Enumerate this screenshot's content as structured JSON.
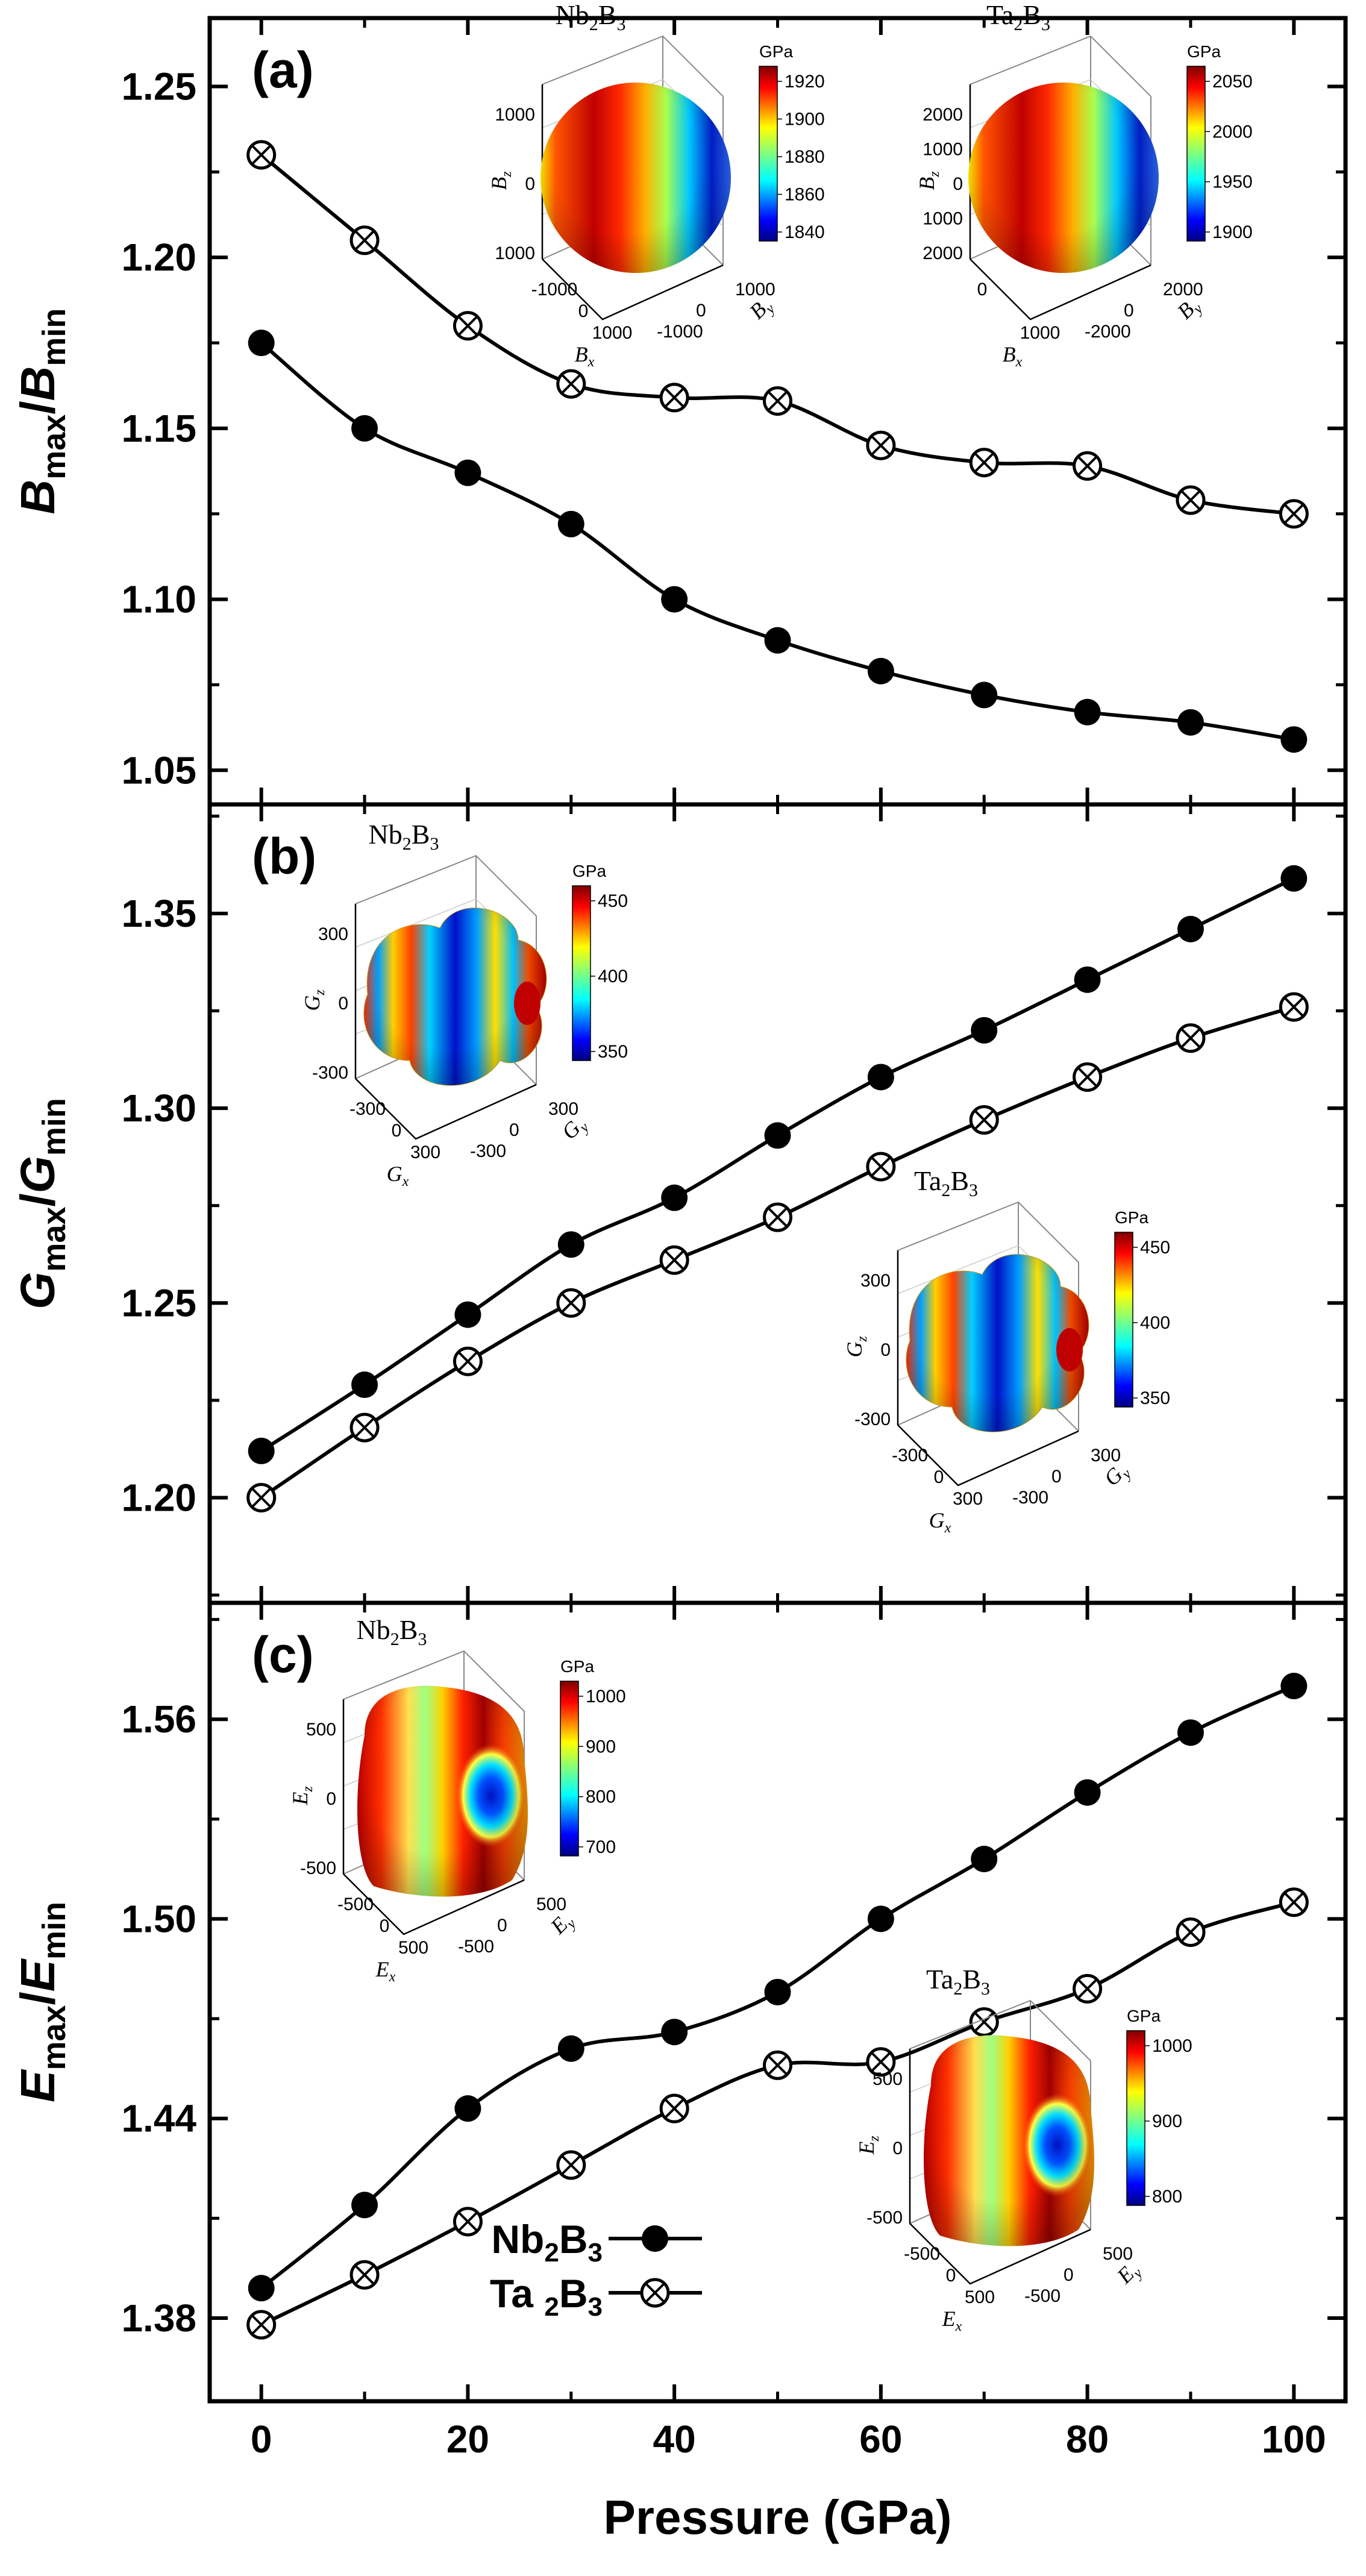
{
  "chart_data": [
    {
      "type": "line",
      "panel_label": "(a)",
      "ylabel_main": "B",
      "ylabel_sub_max": "max",
      "ylabel_slash": "/",
      "ylabel_sub_min": "min",
      "ylim": [
        1.04,
        1.27
      ],
      "yticks": [
        "1.05",
        "1.10",
        "1.15",
        "1.20",
        "1.25"
      ],
      "x": [
        0,
        10,
        20,
        30,
        40,
        50,
        60,
        70,
        80,
        90,
        100
      ],
      "series": [
        {
          "name": "Nb2B3",
          "values": [
            1.175,
            1.15,
            1.137,
            1.122,
            1.1,
            1.088,
            1.079,
            1.072,
            1.067,
            1.064,
            1.059
          ]
        },
        {
          "name": "Ta2B3",
          "values": [
            1.23,
            1.205,
            1.18,
            1.163,
            1.159,
            1.158,
            1.145,
            1.14,
            1.139,
            1.129,
            1.125
          ]
        }
      ],
      "insets": [
        {
          "title": "Nb",
          "title_sub": "2",
          "title_b": "B",
          "title_sub2": "3",
          "unit": "GPa",
          "colorbar_ticks": [
            "1920",
            "1900",
            "1880",
            "1860",
            "1840"
          ],
          "z_ticks": [
            "1000",
            "0",
            "1000"
          ],
          "x_ticks": [
            "-1000",
            "0",
            "1000"
          ],
          "y_ticks": [
            "1000",
            "0",
            "-1000"
          ],
          "ax_x": "B",
          "ax_x_sub": "x",
          "ax_y": "B",
          "ax_y_sub": "y",
          "ax_z": "B",
          "ax_z_sub": "z"
        },
        {
          "title": "Ta",
          "title_sub": "2",
          "title_b": "B",
          "title_sub2": "3",
          "unit": "GPa",
          "colorbar_ticks": [
            "2050",
            "2000",
            "1950",
            "1900"
          ],
          "z_ticks": [
            "2000",
            "1000",
            "0",
            "1000",
            "2000"
          ],
          "x_ticks": [
            "0",
            "1000"
          ],
          "y_ticks": [
            "2000",
            "0",
            "-2000"
          ],
          "ax_x": "B",
          "ax_x_sub": "x",
          "ax_y": "B",
          "ax_y_sub": "y",
          "ax_z": "B",
          "ax_z_sub": "z"
        }
      ]
    },
    {
      "type": "line",
      "panel_label": "(b)",
      "ylabel_main": "G",
      "ylabel_sub_max": "max",
      "ylabel_slash": "/",
      "ylabel_sub_min": "min",
      "ylim": [
        1.173,
        1.378
      ],
      "yticks": [
        "1.20",
        "1.25",
        "1.30",
        "1.35"
      ],
      "x": [
        0,
        10,
        20,
        30,
        40,
        50,
        60,
        70,
        80,
        90,
        100
      ],
      "series": [
        {
          "name": "Nb2B3",
          "values": [
            1.212,
            1.229,
            1.247,
            1.265,
            1.277,
            1.293,
            1.308,
            1.32,
            1.333,
            1.346,
            1.359
          ]
        },
        {
          "name": "Ta2B3",
          "values": [
            1.2,
            1.218,
            1.235,
            1.25,
            1.261,
            1.272,
            1.285,
            1.297,
            1.308,
            1.318,
            1.326
          ]
        }
      ],
      "insets": [
        {
          "title": "Nb",
          "title_sub": "2",
          "title_b": "B",
          "title_sub2": "3",
          "unit": "GPa",
          "colorbar_ticks": [
            "450",
            "400",
            "350"
          ],
          "z_ticks": [
            "300",
            "0",
            "-300"
          ],
          "x_ticks": [
            "-300",
            "0",
            "300"
          ],
          "y_ticks": [
            "300",
            "0",
            "-300"
          ],
          "ax_x": "G",
          "ax_x_sub": "x",
          "ax_y": "G",
          "ax_y_sub": "y",
          "ax_z": "G",
          "ax_z_sub": "z"
        },
        {
          "title": "Ta",
          "title_sub": "2",
          "title_b": "B",
          "title_sub2": "3",
          "unit": "GPa",
          "colorbar_ticks": [
            "450",
            "400",
            "350"
          ],
          "z_ticks": [
            "300",
            "0",
            "-300"
          ],
          "x_ticks": [
            "-300",
            "0",
            "300"
          ],
          "y_ticks": [
            "300",
            "0",
            "-300"
          ],
          "ax_x": "G",
          "ax_x_sub": "x",
          "ax_y": "G",
          "ax_y_sub": "y",
          "ax_z": "G",
          "ax_z_sub": "z"
        }
      ]
    },
    {
      "type": "line",
      "panel_label": "(c)",
      "ylabel_main": "E",
      "ylabel_sub_max": "max",
      "ylabel_slash": "/",
      "ylabel_sub_min": "min",
      "ylim": [
        1.355,
        1.595
      ],
      "yticks": [
        "1.38",
        "1.44",
        "1.50",
        "1.56"
      ],
      "x": [
        0,
        10,
        20,
        30,
        40,
        50,
        60,
        70,
        80,
        90,
        100
      ],
      "series": [
        {
          "name": "Nb2B3",
          "values": [
            1.389,
            1.414,
            1.443,
            1.461,
            1.466,
            1.478,
            1.5,
            1.518,
            1.538,
            1.556,
            1.57
          ]
        },
        {
          "name": "Ta2B3",
          "values": [
            1.378,
            1.393,
            1.409,
            1.426,
            1.443,
            1.456,
            1.457,
            1.469,
            1.479,
            1.496,
            1.505
          ]
        }
      ],
      "insets": [
        {
          "title": "Nb",
          "title_sub": "2",
          "title_b": "B",
          "title_sub2": "3",
          "unit": "GPa",
          "colorbar_ticks": [
            "1000",
            "900",
            "800",
            "700"
          ],
          "z_ticks": [
            "500",
            "0",
            "-500"
          ],
          "x_ticks": [
            "-500",
            "0",
            "500"
          ],
          "y_ticks": [
            "500",
            "0",
            "-500"
          ],
          "ax_x": "E",
          "ax_x_sub": "x",
          "ax_y": "E",
          "ax_y_sub": "y",
          "ax_z": "E",
          "ax_z_sub": "z"
        },
        {
          "title": "Ta",
          "title_sub": "2",
          "title_b": "B",
          "title_sub2": "3",
          "unit": "GPa",
          "colorbar_ticks": [
            "1000",
            "900",
            "800"
          ],
          "z_ticks": [
            "500",
            "0",
            "-500"
          ],
          "x_ticks": [
            "-500",
            "0",
            "500"
          ],
          "y_ticks": [
            "500",
            "0",
            "-500"
          ],
          "ax_x": "E",
          "ax_x_sub": "x",
          "ax_y": "E",
          "ax_y_sub": "y",
          "ax_z": "E",
          "ax_z_sub": "z"
        }
      ]
    }
  ],
  "x_axis": {
    "label": "Pressure (GPa)",
    "ticks": [
      "0",
      "20",
      "40",
      "60",
      "80",
      "100"
    ],
    "tick_values": [
      0,
      20,
      40,
      60,
      80,
      100
    ],
    "xlim": [
      -5,
      105
    ]
  },
  "legend": {
    "entries": [
      {
        "name_main": "Nb",
        "name_sub": "2",
        "name_b": "B",
        "name_sub2": "3",
        "marker": "filled-circle"
      },
      {
        "name_main": "Ta ",
        "name_sub": "2",
        "name_b": "B",
        "name_sub2": "3",
        "marker": "circle-x"
      }
    ]
  },
  "colors": {
    "line": "#000000",
    "background": "#ffffff"
  }
}
